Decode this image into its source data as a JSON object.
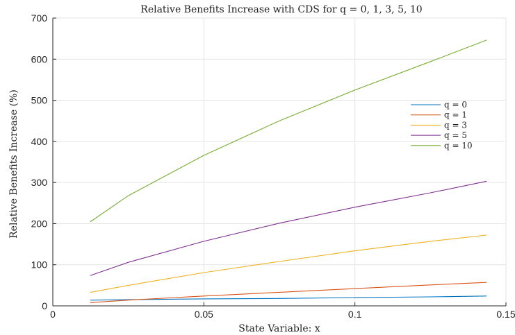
{
  "chart_data": {
    "type": "line",
    "title": "Relative Benefits Increase with CDS for q = 0, 1, 3, 5, 10",
    "xlabel": "State Variable: x",
    "ylabel": "Relative Benefits Increase (%)",
    "xlim": [
      0,
      0.15
    ],
    "ylim": [
      0,
      700
    ],
    "xticks": [
      0,
      0.05,
      0.1,
      0.15
    ],
    "xtick_labels": [
      "0",
      "0.05",
      "0.1",
      "0.15"
    ],
    "yticks": [
      0,
      100,
      200,
      300,
      400,
      500,
      600,
      700
    ],
    "ytick_labels": [
      "0",
      "100",
      "200",
      "300",
      "400",
      "500",
      "600",
      "700"
    ],
    "grid": true,
    "legend_position": "right",
    "x": [
      0.0125,
      0.025,
      0.05,
      0.075,
      0.1,
      0.125,
      0.1435
    ],
    "series": [
      {
        "name": "q = 0",
        "color": "#0072BD",
        "values": [
          14,
          15,
          17,
          18,
          20,
          22,
          24
        ]
      },
      {
        "name": "q = 1",
        "color": "#D95319",
        "values": [
          8,
          14,
          24,
          33,
          42,
          51,
          57
        ]
      },
      {
        "name": "q = 3",
        "color": "#EDB120",
        "values": [
          33,
          50,
          81,
          108,
          134,
          157,
          172
        ]
      },
      {
        "name": "q = 5",
        "color": "#7E2F8E",
        "values": [
          74,
          106,
          157,
          201,
          240,
          275,
          303
        ]
      },
      {
        "name": "q = 10",
        "color": "#77AC30",
        "values": [
          205,
          268,
          366,
          450,
          525,
          594,
          646
        ]
      }
    ]
  }
}
